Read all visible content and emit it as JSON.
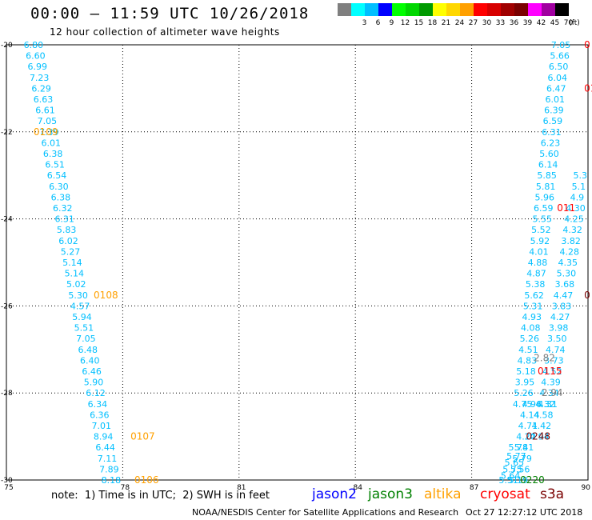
{
  "header": {
    "title": "00:00 – 11:59 UTC 10/26/2018",
    "subtitle": "12 hour collection of altimeter wave heights"
  },
  "legend": {
    "unit_label": "(ft)",
    "items": [
      {
        "label": "",
        "color": "#7f7f7f"
      },
      {
        "label": "3",
        "color": "#00ffff"
      },
      {
        "label": "6",
        "color": "#00bfff"
      },
      {
        "label": "9",
        "color": "#0000ff"
      },
      {
        "label": "12",
        "color": "#00ff00"
      },
      {
        "label": "15",
        "color": "#00d700"
      },
      {
        "label": "18",
        "color": "#009a00"
      },
      {
        "label": "21",
        "color": "#ffff00"
      },
      {
        "label": "24",
        "color": "#ffd700"
      },
      {
        "label": "27",
        "color": "#ffa000"
      },
      {
        "label": "30",
        "color": "#ff0000"
      },
      {
        "label": "33",
        "color": "#d70000"
      },
      {
        "label": "36",
        "color": "#a00000"
      },
      {
        "label": "39",
        "color": "#7a0000"
      },
      {
        "label": "42",
        "color": "#ff00ff"
      },
      {
        "label": "45",
        "color": "#a000a0"
      },
      {
        "label": "70",
        "color": "#000000"
      }
    ]
  },
  "footer": {
    "note": "note:  1) Time is in UTC;  2) SWH is in feet",
    "satellites": [
      {
        "name": "jason2",
        "color": "#0000ff"
      },
      {
        "name": "jason3",
        "color": "#008000"
      },
      {
        "name": "altika",
        "color": "#ffa000"
      },
      {
        "name": "cryosat",
        "color": "#ff0000"
      },
      {
        "name": "s3a",
        "color": "#7a0000"
      }
    ],
    "credit": "NOAA/NESDIS Center for Satellite Applications and Research",
    "timestamp": "Oct 27 12:27:12 UTC 2018"
  },
  "chart_data": {
    "type": "scatter",
    "title": "00:00 – 11:59 UTC 10/26/2018",
    "xlabel": "",
    "ylabel": "",
    "xlim": [
      75,
      90
    ],
    "ylim": [
      -30,
      -20
    ],
    "xticks": [
      75,
      78,
      81,
      84,
      87,
      90
    ],
    "yticks": [
      -20,
      -22,
      -24,
      -26,
      -28,
      -30
    ],
    "grid": true,
    "label_color": "#00bfff",
    "series": [
      {
        "points": [
          {
            "x": 75.7,
            "y": -20.0,
            "v": "6.80"
          },
          {
            "x": 75.75,
            "y": -20.25,
            "v": "6.60"
          },
          {
            "x": 75.8,
            "y": -20.5,
            "v": "6.99"
          },
          {
            "x": 75.85,
            "y": -20.75,
            "v": "7.23"
          },
          {
            "x": 75.9,
            "y": -21.0,
            "v": "6.29"
          },
          {
            "x": 75.95,
            "y": -21.25,
            "v": "6.63"
          },
          {
            "x": 76.0,
            "y": -21.5,
            "v": "6.61"
          },
          {
            "x": 76.05,
            "y": -21.75,
            "v": "7.05"
          },
          {
            "x": 76.1,
            "y": -22.0,
            "v": "7.39"
          },
          {
            "x": 76.15,
            "y": -22.25,
            "v": "6.01"
          },
          {
            "x": 76.2,
            "y": -22.5,
            "v": "6.38"
          },
          {
            "x": 76.25,
            "y": -22.75,
            "v": "6.51"
          },
          {
            "x": 76.3,
            "y": -23.0,
            "v": "6.54"
          },
          {
            "x": 76.35,
            "y": -23.25,
            "v": "6.30"
          },
          {
            "x": 76.4,
            "y": -23.5,
            "v": "6.38"
          },
          {
            "x": 76.45,
            "y": -23.75,
            "v": "6.32"
          },
          {
            "x": 76.5,
            "y": -24.0,
            "v": "6.31"
          },
          {
            "x": 76.55,
            "y": -24.25,
            "v": "5.83"
          },
          {
            "x": 76.6,
            "y": -24.5,
            "v": "6.02"
          },
          {
            "x": 76.65,
            "y": -24.75,
            "v": "5.27"
          },
          {
            "x": 76.7,
            "y": -25.0,
            "v": "5.14"
          },
          {
            "x": 76.75,
            "y": -25.25,
            "v": "5.14"
          },
          {
            "x": 76.8,
            "y": -25.5,
            "v": "5.02"
          },
          {
            "x": 76.85,
            "y": -25.75,
            "v": "5.30"
          },
          {
            "x": 76.9,
            "y": -26.0,
            "v": "4.57"
          },
          {
            "x": 76.95,
            "y": -26.25,
            "v": "5.94"
          },
          {
            "x": 77.0,
            "y": -26.5,
            "v": "5.51"
          },
          {
            "x": 77.05,
            "y": -26.75,
            "v": "7.05"
          },
          {
            "x": 77.1,
            "y": -27.0,
            "v": "6.48"
          },
          {
            "x": 77.15,
            "y": -27.25,
            "v": "6.40"
          },
          {
            "x": 77.2,
            "y": -27.5,
            "v": "6.46"
          },
          {
            "x": 77.25,
            "y": -27.75,
            "v": "5.90"
          },
          {
            "x": 77.3,
            "y": -28.0,
            "v": "6.12"
          },
          {
            "x": 77.35,
            "y": -28.25,
            "v": "6.34"
          },
          {
            "x": 77.4,
            "y": -28.5,
            "v": "6.36"
          },
          {
            "x": 77.45,
            "y": -28.75,
            "v": "7.01"
          },
          {
            "x": 77.5,
            "y": -29.0,
            "v": "8.94"
          },
          {
            "x": 77.55,
            "y": -29.25,
            "v": "6.44"
          },
          {
            "x": 77.6,
            "y": -29.5,
            "v": "7.11"
          },
          {
            "x": 77.65,
            "y": -29.75,
            "v": "7.89"
          },
          {
            "x": 77.7,
            "y": -30.0,
            "v": "8.18"
          }
        ]
      },
      {
        "points": [
          {
            "x": 89.3,
            "y": -20.0,
            "v": "7.05"
          },
          {
            "x": 89.27,
            "y": -20.25,
            "v": "5.66"
          },
          {
            "x": 89.24,
            "y": -20.5,
            "v": "6.50"
          },
          {
            "x": 89.21,
            "y": -20.75,
            "v": "6.04"
          },
          {
            "x": 89.18,
            "y": -21.0,
            "v": "6.47"
          },
          {
            "x": 89.15,
            "y": -21.25,
            "v": "6.01"
          },
          {
            "x": 89.12,
            "y": -21.5,
            "v": "6.39"
          },
          {
            "x": 89.09,
            "y": -21.75,
            "v": "6.59"
          },
          {
            "x": 89.06,
            "y": -22.0,
            "v": "6.31"
          },
          {
            "x": 89.03,
            "y": -22.25,
            "v": "6.23"
          },
          {
            "x": 89.0,
            "y": -22.5,
            "v": "5.60"
          },
          {
            "x": 88.97,
            "y": -22.75,
            "v": "6.14"
          },
          {
            "x": 88.94,
            "y": -23.0,
            "v": "5.85"
          },
          {
            "x": 88.91,
            "y": -23.25,
            "v": "5.81"
          },
          {
            "x": 88.88,
            "y": -23.5,
            "v": "5.96"
          },
          {
            "x": 88.85,
            "y": -23.75,
            "v": "6.59"
          },
          {
            "x": 88.82,
            "y": -24.0,
            "v": "5.55"
          },
          {
            "x": 88.79,
            "y": -24.25,
            "v": "5.52"
          },
          {
            "x": 88.76,
            "y": -24.5,
            "v": "5.92"
          },
          {
            "x": 88.73,
            "y": -24.75,
            "v": "4.01"
          },
          {
            "x": 88.7,
            "y": -25.0,
            "v": "4.88"
          },
          {
            "x": 88.67,
            "y": -25.25,
            "v": "4.87"
          },
          {
            "x": 88.64,
            "y": -25.5,
            "v": "5.38"
          },
          {
            "x": 88.61,
            "y": -25.75,
            "v": "5.62"
          },
          {
            "x": 88.58,
            "y": -26.0,
            "v": "5.31"
          },
          {
            "x": 88.55,
            "y": -26.25,
            "v": "4.93"
          },
          {
            "x": 88.52,
            "y": -26.5,
            "v": "4.08"
          },
          {
            "x": 88.49,
            "y": -26.75,
            "v": "5.26"
          },
          {
            "x": 88.46,
            "y": -27.0,
            "v": "4.51"
          },
          {
            "x": 88.43,
            "y": -27.25,
            "v": "4.83"
          },
          {
            "x": 88.4,
            "y": -27.5,
            "v": "5.18"
          },
          {
            "x": 88.37,
            "y": -27.75,
            "v": "3.95"
          },
          {
            "x": 88.34,
            "y": -28.0,
            "v": "5.26"
          },
          {
            "x": 88.31,
            "y": -28.25,
            "v": "4.75"
          }
        ]
      },
      {
        "points": [
          {
            "x": 89.8,
            "y": -23.0,
            "v": "5.3"
          },
          {
            "x": 89.76,
            "y": -23.25,
            "v": "5.1"
          },
          {
            "x": 89.72,
            "y": -23.5,
            "v": "4.9"
          },
          {
            "x": 89.68,
            "y": -23.75,
            "v": "4.30"
          },
          {
            "x": 89.64,
            "y": -24.0,
            "v": "4.25"
          },
          {
            "x": 89.6,
            "y": -24.25,
            "v": "4.32"
          },
          {
            "x": 89.56,
            "y": -24.5,
            "v": "3.82"
          },
          {
            "x": 89.52,
            "y": -24.75,
            "v": "4.28"
          },
          {
            "x": 89.48,
            "y": -25.0,
            "v": "4.35"
          },
          {
            "x": 89.44,
            "y": -25.25,
            "v": "5.30"
          },
          {
            "x": 89.4,
            "y": -25.5,
            "v": "3.68"
          },
          {
            "x": 89.36,
            "y": -25.75,
            "v": "4.47"
          },
          {
            "x": 89.32,
            "y": -26.0,
            "v": "3.83"
          },
          {
            "x": 89.28,
            "y": -26.25,
            "v": "4.27"
          },
          {
            "x": 89.24,
            "y": -26.5,
            "v": "3.98"
          },
          {
            "x": 89.2,
            "y": -26.75,
            "v": "3.50"
          },
          {
            "x": 89.16,
            "y": -27.0,
            "v": "4.74"
          },
          {
            "x": 89.12,
            "y": -27.25,
            "v": "3.73"
          },
          {
            "x": 89.08,
            "y": -27.5,
            "v": "4.52"
          },
          {
            "x": 89.04,
            "y": -27.75,
            "v": "4.39"
          },
          {
            "x": 89.0,
            "y": -28.0,
            "v": "4.34"
          },
          {
            "x": 88.96,
            "y": -28.25,
            "v": "4.31"
          }
        ]
      },
      {
        "points": [
          {
            "x": 88.55,
            "y": -28.25,
            "v": "4.96"
          },
          {
            "x": 88.5,
            "y": -28.5,
            "v": "4.14"
          },
          {
            "x": 88.45,
            "y": -28.75,
            "v": "4.71"
          },
          {
            "x": 88.4,
            "y": -29.0,
            "v": "4.20"
          },
          {
            "x": 88.35,
            "y": -29.25,
            "v": "5.41"
          },
          {
            "x": 88.3,
            "y": -29.5,
            "v": "5.79"
          },
          {
            "x": 88.25,
            "y": -29.75,
            "v": "5.56"
          },
          {
            "x": 88.2,
            "y": -30.0,
            "v": "5.19"
          }
        ]
      },
      {
        "points": [
          {
            "x": 88.2,
            "y": -29.25,
            "v": "5.78"
          },
          {
            "x": 88.15,
            "y": -29.45,
            "v": "5.77"
          },
          {
            "x": 88.1,
            "y": -29.6,
            "v": "5.65"
          },
          {
            "x": 88.05,
            "y": -29.75,
            "v": "5.75"
          },
          {
            "x": 88.0,
            "y": -29.9,
            "v": "5.64"
          },
          {
            "x": 87.95,
            "y": -30.0,
            "v": "5.51"
          }
        ]
      },
      {
        "points": [
          {
            "x": 88.9,
            "y": -28.25,
            "v": "4.32"
          },
          {
            "x": 88.85,
            "y": -28.5,
            "v": "4.58"
          },
          {
            "x": 88.8,
            "y": -28.75,
            "v": "4.42"
          },
          {
            "x": 88.75,
            "y": -29.0,
            "v": "4.94"
          }
        ]
      }
    ],
    "annotations": [
      {
        "x": 75.7,
        "y": -22.0,
        "text": "0109",
        "color": "#ffa000"
      },
      {
        "x": 77.25,
        "y": -25.75,
        "text": "0108",
        "color": "#ffa000"
      },
      {
        "x": 78.2,
        "y": -29.0,
        "text": "0107",
        "color": "#ffa000"
      },
      {
        "x": 78.3,
        "y": -30.0,
        "text": "0106",
        "color": "#ffa000"
      },
      {
        "x": 89.9,
        "y": -20.0,
        "text": "0",
        "color": "#ff0000"
      },
      {
        "x": 89.9,
        "y": -21.0,
        "text": "01",
        "color": "#ff0000"
      },
      {
        "x": 89.2,
        "y": -23.75,
        "text": "011",
        "color": "#ff0000"
      },
      {
        "x": 89.9,
        "y": -25.75,
        "text": "0",
        "color": "#7a0000"
      },
      {
        "x": 88.7,
        "y": -27.5,
        "text": "0115",
        "color": "#ff0000"
      },
      {
        "x": 88.6,
        "y": -27.2,
        "text": "2.82",
        "color": "#7f7f7f"
      },
      {
        "x": 88.8,
        "y": -28.0,
        "text": "2.94",
        "color": "#7f7f7f"
      },
      {
        "x": 88.4,
        "y": -29.0,
        "text": "0248",
        "color": "#7a0000"
      },
      {
        "x": 88.25,
        "y": -30.0,
        "text": "0220",
        "color": "#008000"
      }
    ]
  }
}
